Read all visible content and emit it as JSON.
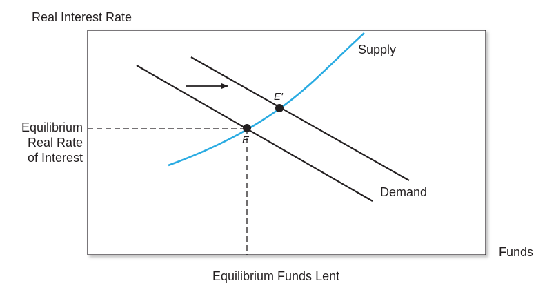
{
  "diagram": {
    "y_axis_title": "Real Interest Rate",
    "x_axis_title": "Funds",
    "equilibrium_rate_label": [
      "Equilibrium",
      "Real Rate",
      "of Interest"
    ],
    "equilibrium_funds_label": "Equilibrium Funds Lent",
    "supply_label": "Supply",
    "demand_label": "Demand",
    "original_equilibrium_label": "E",
    "new_equilibrium_label": "E'",
    "shift_direction": "right",
    "colors": {
      "supply_curve": "#29abe2",
      "demand_curve": "#231f20",
      "frame": "#231f20"
    }
  }
}
